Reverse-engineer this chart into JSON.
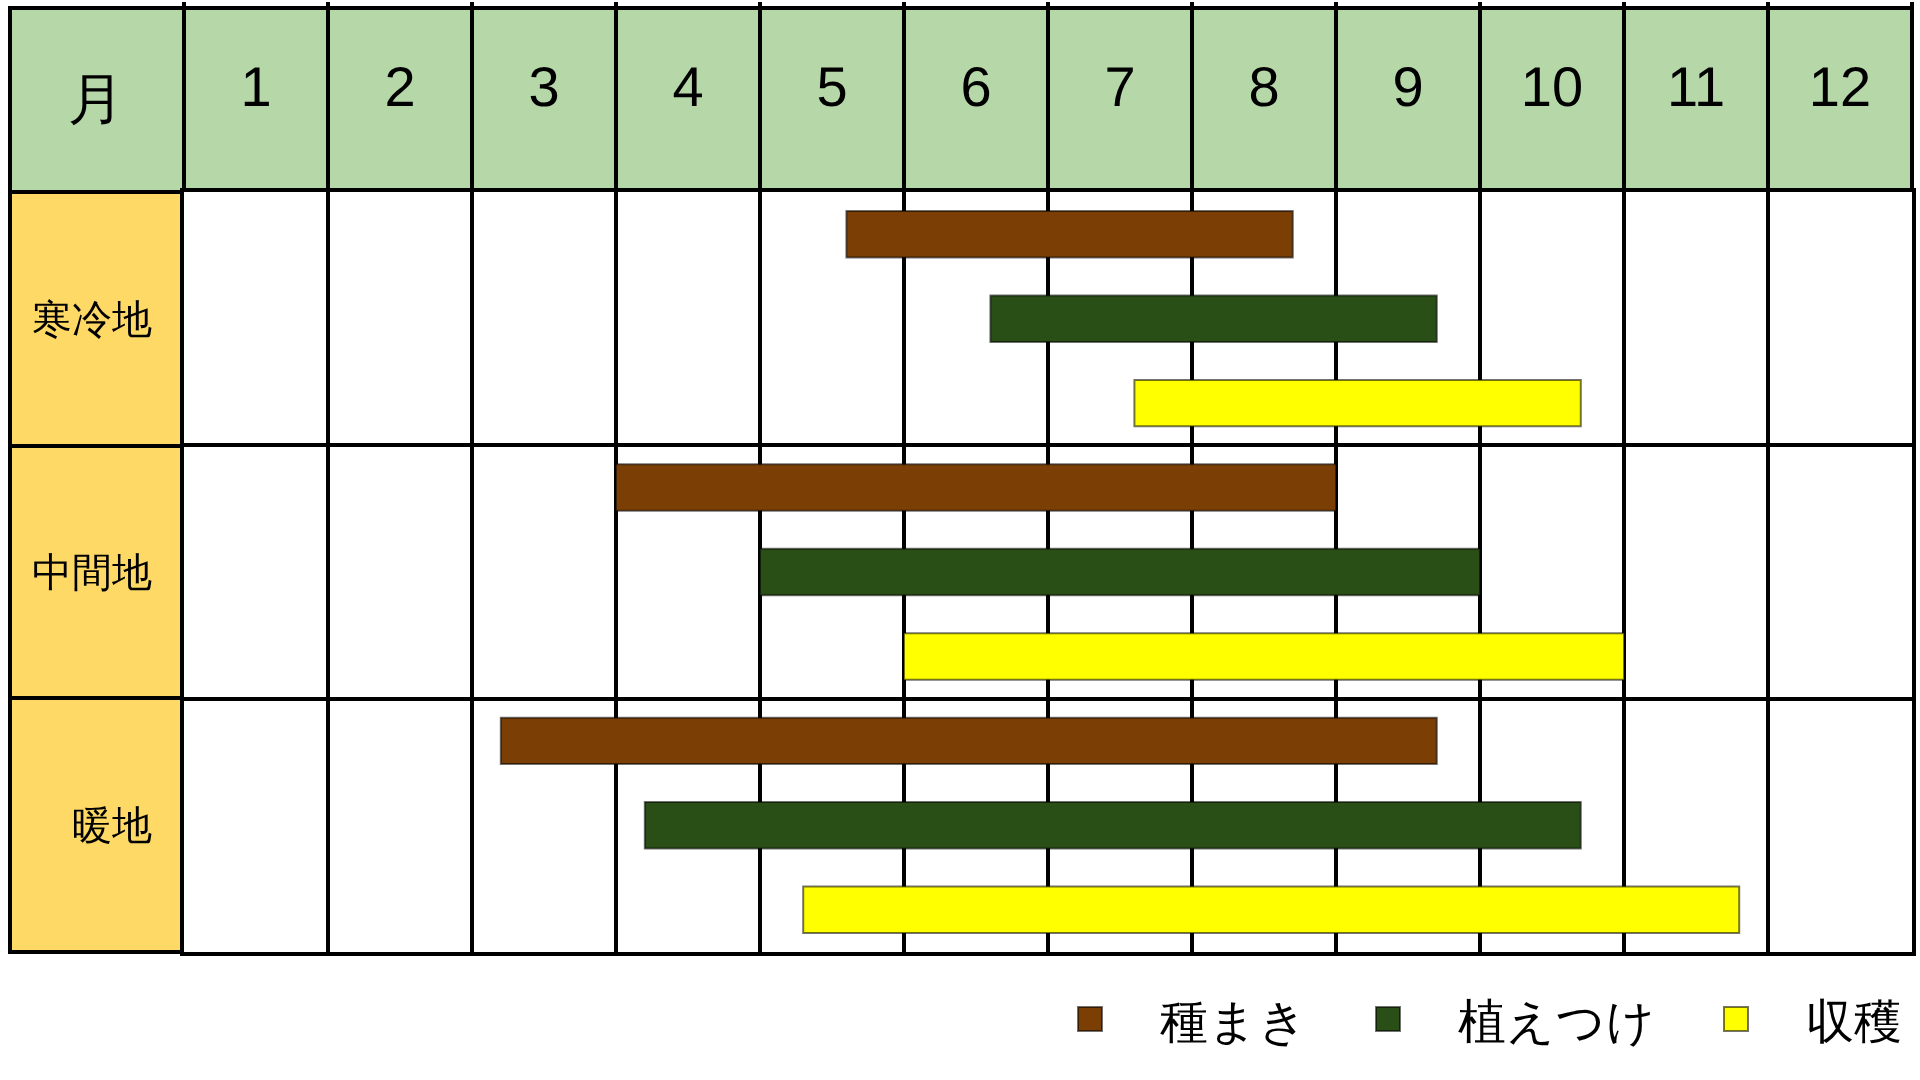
{
  "chart_data": {
    "type": "bar",
    "orientation": "horizontal",
    "xlabel": "月",
    "categories": [
      "寒冷地",
      "中間地",
      "暖地"
    ],
    "series": [
      {
        "name": "種まき",
        "color": "#7b3f05",
        "base": [
          5.1,
          3.5,
          2.7
        ],
        "values": [
          3.1,
          5,
          6.5
        ]
      },
      {
        "name": "植えつけ",
        "color": "#294f16",
        "base": [
          6.1,
          4.5,
          3.7
        ],
        "values": [
          3.1,
          5,
          6.5
        ]
      },
      {
        "name": "収穫",
        "color": "#ffff00",
        "base": [
          7.1,
          5.5,
          4.8
        ],
        "values": [
          3.1,
          5,
          6.5
        ]
      }
    ],
    "xlim": [
      0.5,
      12.5
    ],
    "xticks": [
      {
        "value": 0.5,
        "label": null
      },
      1,
      {
        "value": 1.5,
        "label": null
      },
      2,
      {
        "value": 2.5,
        "label": null
      },
      3,
      {
        "value": 3.5,
        "label": null
      },
      4,
      {
        "value": 4.5,
        "label": null
      },
      5,
      {
        "value": 5.5,
        "label": null
      },
      6,
      {
        "value": 6.5,
        "label": null
      },
      7,
      {
        "value": 7.5,
        "label": null
      },
      8,
      {
        "value": 8.5,
        "label": null
      },
      9,
      {
        "value": 9.5,
        "label": null
      },
      10,
      {
        "value": 10.5,
        "label": null
      },
      11,
      {
        "value": 11.5,
        "label": null
      },
      12,
      {
        "value": 12.5,
        "label": null
      }
    ],
    "grid": true,
    "legend": "bottom right"
  }
}
